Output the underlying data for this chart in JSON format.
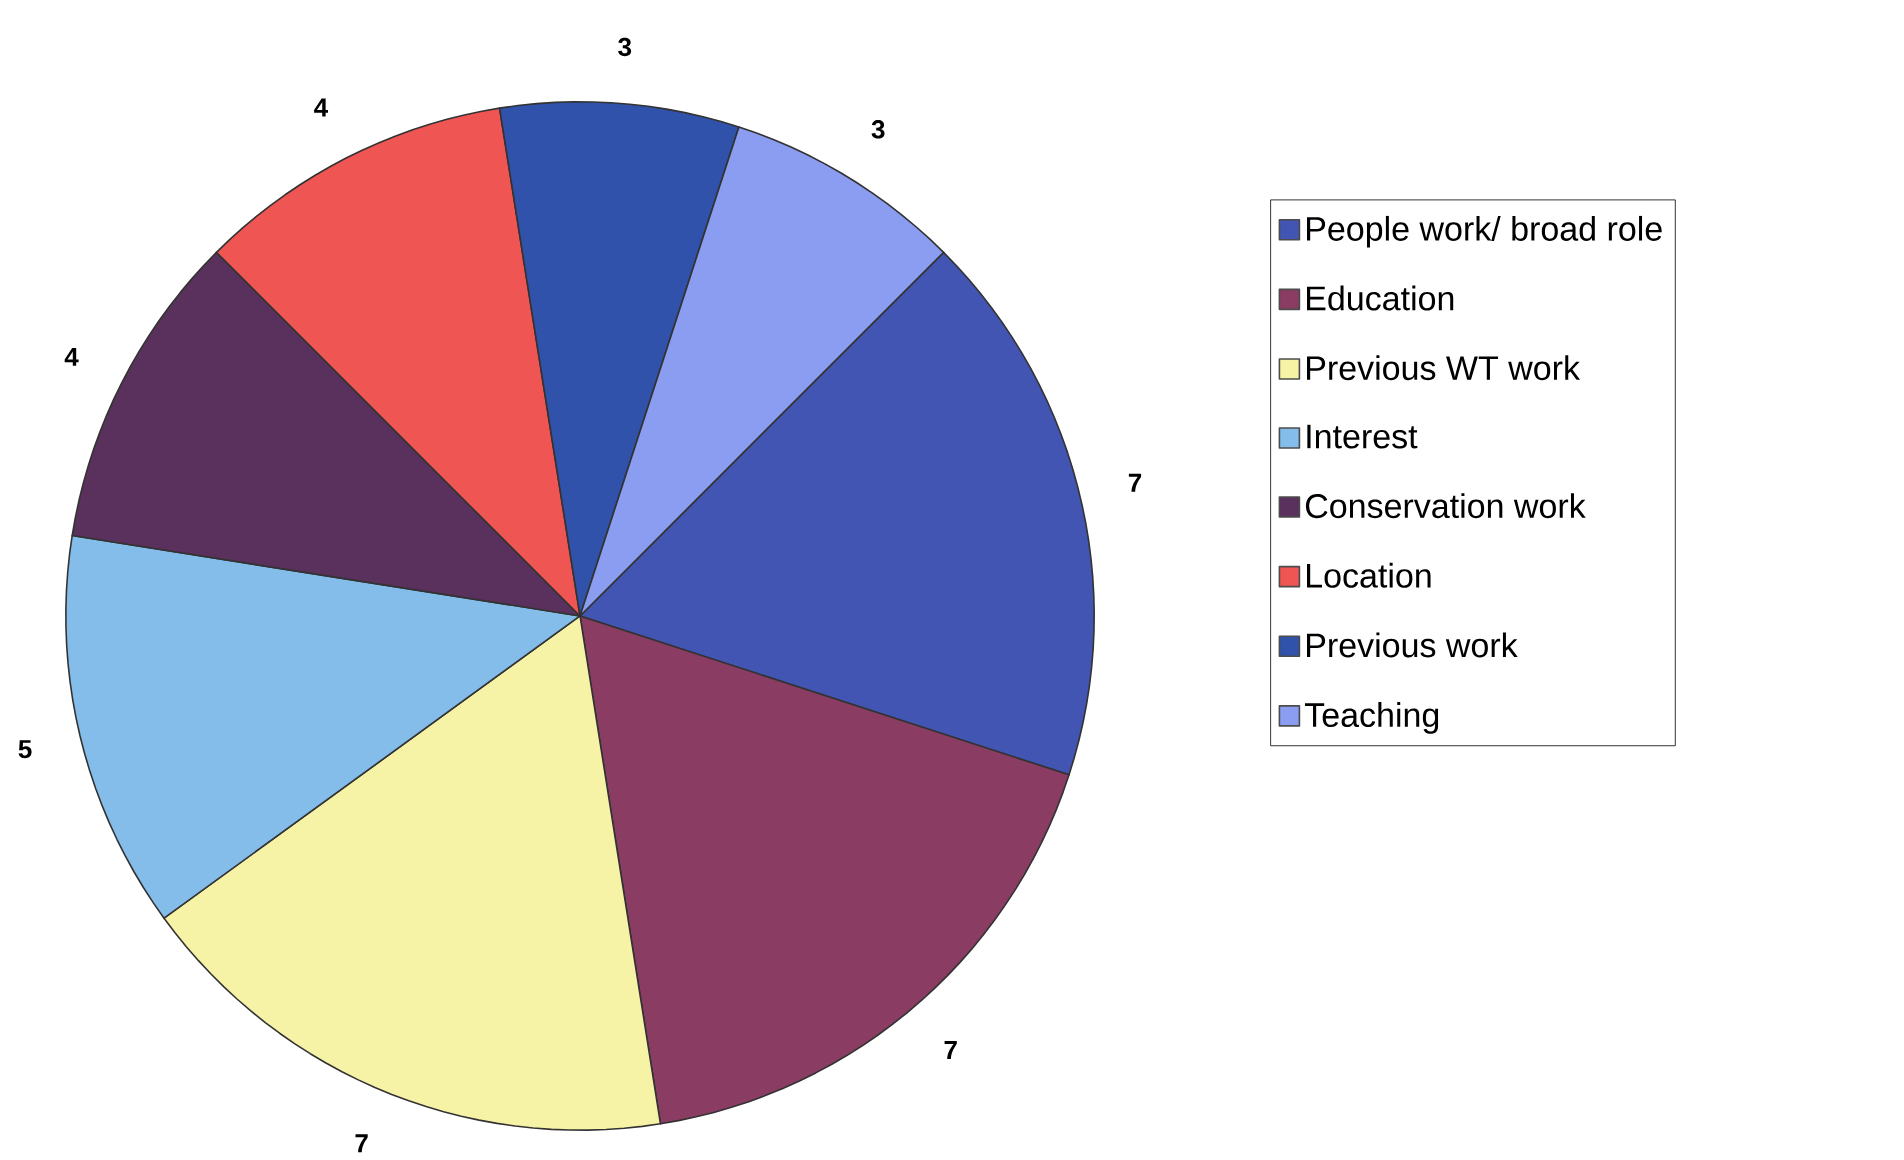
{
  "chart_data": {
    "type": "pie",
    "categories": [
      "People work/ broad role",
      "Education",
      "Previous WT work",
      "Interest",
      "Conservation work",
      "Location",
      "Previous work",
      "Teaching"
    ],
    "values": [
      7,
      7,
      7,
      5,
      4,
      4,
      3,
      3
    ],
    "colors": [
      "#4355b2",
      "#8a3c62",
      "#f7f3a6",
      "#84bcea",
      "#5a305c",
      "#ef5552",
      "#3152ab",
      "#8b9df0"
    ],
    "data_labels": true,
    "legend": "right"
  }
}
